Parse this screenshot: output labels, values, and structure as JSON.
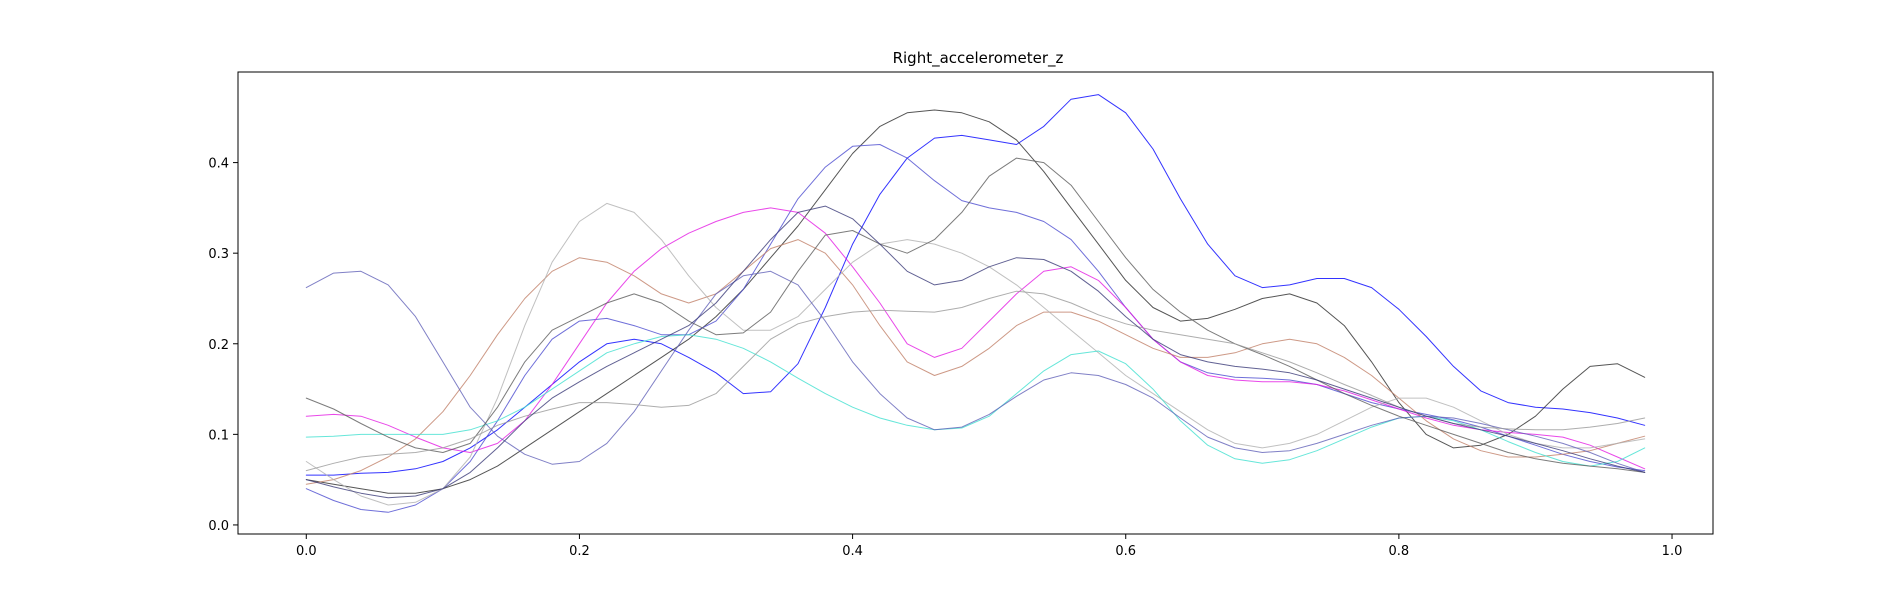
{
  "chart_data": {
    "type": "line",
    "title": "Right_accelerometer_z",
    "xlabel": "",
    "ylabel": "",
    "xlim": [
      -0.05,
      1.03
    ],
    "ylim": [
      -0.01,
      0.5
    ],
    "xticks": [
      0.0,
      0.2,
      0.4,
      0.6,
      0.8,
      1.0
    ],
    "xtick_labels": [
      "0.0",
      "0.2",
      "0.4",
      "0.6",
      "0.8",
      "1.0"
    ],
    "yticks": [
      0.0,
      0.1,
      0.2,
      0.3,
      0.4
    ],
    "ytick_labels": [
      "0.0",
      "0.1",
      "0.2",
      "0.3",
      "0.4"
    ],
    "grid": false,
    "legend": "none",
    "x": [
      0.0,
      0.02,
      0.04,
      0.06,
      0.08,
      0.1,
      0.12,
      0.14,
      0.16,
      0.18,
      0.2,
      0.22,
      0.24,
      0.26,
      0.28,
      0.3,
      0.32,
      0.34,
      0.36,
      0.38,
      0.4,
      0.42,
      0.44,
      0.46,
      0.48,
      0.5,
      0.52,
      0.54,
      0.56,
      0.58,
      0.6,
      0.62,
      0.64,
      0.66,
      0.68,
      0.7,
      0.72,
      0.74,
      0.76,
      0.78,
      0.8,
      0.82,
      0.84,
      0.86,
      0.88,
      0.9,
      0.92,
      0.94,
      0.96,
      0.98
    ],
    "series": [
      {
        "color": "#0000ff",
        "values": [
          0.055,
          0.055,
          0.057,
          0.058,
          0.062,
          0.07,
          0.085,
          0.105,
          0.13,
          0.155,
          0.18,
          0.2,
          0.205,
          0.2,
          0.185,
          0.168,
          0.145,
          0.147,
          0.178,
          0.24,
          0.31,
          0.365,
          0.405,
          0.427,
          0.43,
          0.425,
          0.42,
          0.44,
          0.47,
          0.475,
          0.455,
          0.415,
          0.36,
          0.31,
          0.275,
          0.262,
          0.265,
          0.272,
          0.272,
          0.262,
          0.238,
          0.208,
          0.175,
          0.148,
          0.135,
          0.13,
          0.128,
          0.124,
          0.118,
          0.11
        ]
      },
      {
        "color": "#2a2a2a",
        "values": [
          0.05,
          0.045,
          0.04,
          0.035,
          0.035,
          0.04,
          0.05,
          0.065,
          0.085,
          0.105,
          0.125,
          0.145,
          0.165,
          0.185,
          0.205,
          0.23,
          0.26,
          0.295,
          0.33,
          0.37,
          0.41,
          0.44,
          0.455,
          0.458,
          0.455,
          0.445,
          0.425,
          0.39,
          0.35,
          0.31,
          0.27,
          0.24,
          0.225,
          0.228,
          0.238,
          0.25,
          0.255,
          0.245,
          0.22,
          0.18,
          0.135,
          0.1,
          0.085,
          0.088,
          0.1,
          0.12,
          0.15,
          0.175,
          0.178,
          0.163
        ]
      },
      {
        "color": "#4b4bd0",
        "values": [
          0.04,
          0.027,
          0.017,
          0.014,
          0.022,
          0.04,
          0.07,
          0.115,
          0.165,
          0.205,
          0.225,
          0.228,
          0.22,
          0.21,
          0.21,
          0.225,
          0.26,
          0.31,
          0.36,
          0.395,
          0.418,
          0.42,
          0.405,
          0.38,
          0.358,
          0.35,
          0.345,
          0.335,
          0.315,
          0.28,
          0.24,
          0.205,
          0.18,
          0.168,
          0.163,
          0.162,
          0.16,
          0.155,
          0.145,
          0.135,
          0.128,
          0.122,
          0.116,
          0.108,
          0.098,
          0.088,
          0.078,
          0.07,
          0.064,
          0.06
        ]
      },
      {
        "color": "#e31ae3",
        "values": [
          0.12,
          0.122,
          0.12,
          0.11,
          0.097,
          0.085,
          0.08,
          0.09,
          0.115,
          0.155,
          0.2,
          0.245,
          0.28,
          0.305,
          0.322,
          0.335,
          0.345,
          0.35,
          0.345,
          0.322,
          0.285,
          0.245,
          0.2,
          0.185,
          0.195,
          0.225,
          0.255,
          0.28,
          0.285,
          0.27,
          0.24,
          0.205,
          0.18,
          0.165,
          0.16,
          0.158,
          0.158,
          0.155,
          0.148,
          0.138,
          0.128,
          0.118,
          0.11,
          0.105,
          0.102,
          0.1,
          0.097,
          0.088,
          0.075,
          0.062
        ]
      },
      {
        "color": "#c08068",
        "values": [
          0.045,
          0.05,
          0.06,
          0.075,
          0.095,
          0.125,
          0.165,
          0.21,
          0.25,
          0.28,
          0.295,
          0.29,
          0.275,
          0.255,
          0.245,
          0.255,
          0.28,
          0.305,
          0.315,
          0.3,
          0.265,
          0.22,
          0.18,
          0.165,
          0.175,
          0.195,
          0.22,
          0.235,
          0.235,
          0.225,
          0.21,
          0.195,
          0.185,
          0.185,
          0.19,
          0.2,
          0.205,
          0.2,
          0.185,
          0.165,
          0.14,
          0.115,
          0.095,
          0.082,
          0.075,
          0.075,
          0.078,
          0.082,
          0.09,
          0.098
        ]
      },
      {
        "color": "#b0b0b0",
        "values": [
          0.07,
          0.05,
          0.032,
          0.022,
          0.025,
          0.04,
          0.075,
          0.14,
          0.22,
          0.29,
          0.335,
          0.355,
          0.345,
          0.315,
          0.275,
          0.24,
          0.215,
          0.215,
          0.23,
          0.26,
          0.29,
          0.31,
          0.315,
          0.31,
          0.3,
          0.285,
          0.265,
          0.24,
          0.215,
          0.19,
          0.165,
          0.145,
          0.125,
          0.105,
          0.09,
          0.085,
          0.09,
          0.1,
          0.115,
          0.13,
          0.14,
          0.14,
          0.13,
          0.115,
          0.1,
          0.09,
          0.085,
          0.085,
          0.09,
          0.095
        ]
      },
      {
        "color": "#40e0d0",
        "values": [
          0.097,
          0.098,
          0.1,
          0.1,
          0.1,
          0.1,
          0.105,
          0.115,
          0.13,
          0.15,
          0.17,
          0.19,
          0.2,
          0.208,
          0.21,
          0.205,
          0.195,
          0.18,
          0.162,
          0.145,
          0.13,
          0.118,
          0.11,
          0.105,
          0.107,
          0.12,
          0.145,
          0.17,
          0.188,
          0.192,
          0.178,
          0.15,
          0.115,
          0.088,
          0.073,
          0.068,
          0.072,
          0.082,
          0.095,
          0.108,
          0.118,
          0.12,
          0.115,
          0.105,
          0.092,
          0.08,
          0.07,
          0.065,
          0.07,
          0.085
        ]
      },
      {
        "color": "#6060b8",
        "values": [
          0.262,
          0.278,
          0.28,
          0.265,
          0.23,
          0.18,
          0.13,
          0.098,
          0.078,
          0.067,
          0.07,
          0.09,
          0.125,
          0.17,
          0.215,
          0.255,
          0.275,
          0.28,
          0.265,
          0.225,
          0.18,
          0.145,
          0.118,
          0.105,
          0.108,
          0.122,
          0.142,
          0.16,
          0.168,
          0.165,
          0.155,
          0.14,
          0.118,
          0.097,
          0.085,
          0.08,
          0.082,
          0.09,
          0.1,
          0.11,
          0.118,
          0.12,
          0.118,
          0.112,
          0.105,
          0.098,
          0.09,
          0.08,
          0.068,
          0.058
        ]
      },
      {
        "color": "#5b5b5b",
        "values": [
          0.14,
          0.128,
          0.112,
          0.097,
          0.085,
          0.08,
          0.09,
          0.13,
          0.18,
          0.215,
          0.23,
          0.245,
          0.255,
          0.245,
          0.225,
          0.21,
          0.212,
          0.235,
          0.28,
          0.32,
          0.325,
          0.31,
          0.3,
          0.315,
          0.345,
          0.385,
          0.405,
          0.4,
          0.375,
          0.335,
          0.295,
          0.26,
          0.235,
          0.215,
          0.2,
          0.188,
          0.175,
          0.16,
          0.145,
          0.132,
          0.12,
          0.11,
          0.1,
          0.09,
          0.08,
          0.073,
          0.068,
          0.065,
          0.062,
          0.058
        ]
      },
      {
        "color": "#999999",
        "values": [
          0.06,
          0.068,
          0.075,
          0.078,
          0.08,
          0.085,
          0.095,
          0.11,
          0.12,
          0.128,
          0.135,
          0.135,
          0.133,
          0.13,
          0.132,
          0.145,
          0.175,
          0.205,
          0.222,
          0.23,
          0.235,
          0.237,
          0.236,
          0.235,
          0.24,
          0.25,
          0.258,
          0.255,
          0.245,
          0.232,
          0.222,
          0.215,
          0.21,
          0.205,
          0.2,
          0.19,
          0.18,
          0.168,
          0.155,
          0.143,
          0.13,
          0.12,
          0.112,
          0.108,
          0.106,
          0.105,
          0.105,
          0.108,
          0.112,
          0.118
        ]
      },
      {
        "color": "#3a3a78",
        "values": [
          0.05,
          0.042,
          0.035,
          0.03,
          0.032,
          0.04,
          0.058,
          0.085,
          0.115,
          0.14,
          0.158,
          0.175,
          0.19,
          0.205,
          0.22,
          0.245,
          0.28,
          0.315,
          0.345,
          0.352,
          0.338,
          0.31,
          0.28,
          0.265,
          0.27,
          0.285,
          0.295,
          0.293,
          0.28,
          0.258,
          0.23,
          0.205,
          0.188,
          0.18,
          0.175,
          0.172,
          0.168,
          0.16,
          0.15,
          0.14,
          0.13,
          0.12,
          0.112,
          0.105,
          0.098,
          0.09,
          0.082,
          0.073,
          0.065,
          0.058
        ]
      }
    ]
  }
}
